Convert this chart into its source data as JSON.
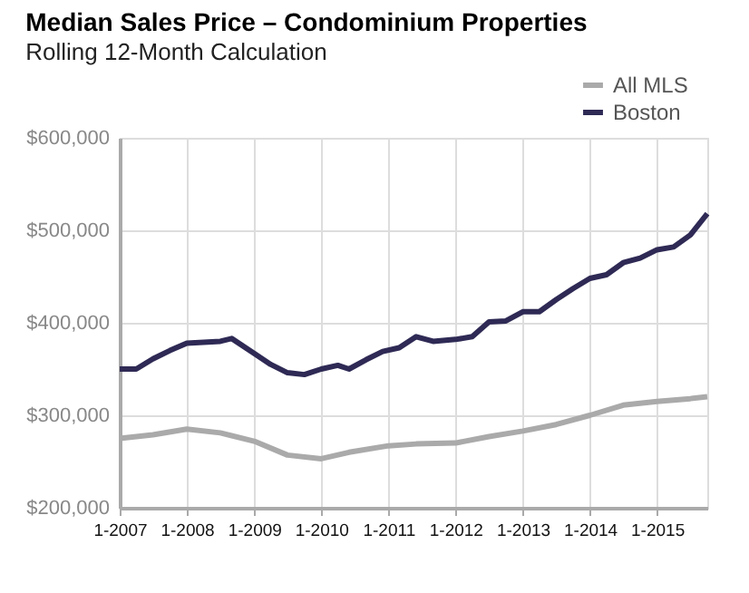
{
  "chart_data": {
    "type": "line",
    "title": "Median Sales Price – Condominium Properties",
    "subtitle": "Rolling 12-Month Calculation",
    "series": [
      {
        "name": "All MLS",
        "color": "#aaaaaa",
        "x": [
          "2007-01",
          "2007-07",
          "2008-01",
          "2008-07",
          "2009-01",
          "2009-07",
          "2010-01",
          "2010-06",
          "2011-01",
          "2011-06",
          "2012-01",
          "2012-07",
          "2013-01",
          "2013-07",
          "2014-01",
          "2014-07",
          "2015-01",
          "2015-07",
          "2015-10"
        ],
        "values": [
          275000,
          279000,
          285000,
          281000,
          272000,
          257000,
          253000,
          260000,
          267000,
          269000,
          270000,
          277000,
          283000,
          290000,
          300000,
          311000,
          315000,
          318000,
          320000
        ]
      },
      {
        "name": "Boston",
        "color": "#2e2a55",
        "x": [
          "2007-01",
          "2007-04",
          "2007-07",
          "2007-10",
          "2008-01",
          "2008-04",
          "2008-07",
          "2008-09",
          "2009-01",
          "2009-04",
          "2009-07",
          "2009-10",
          "2010-01",
          "2010-04",
          "2010-06",
          "2010-09",
          "2010-12",
          "2011-03",
          "2011-06",
          "2011-09",
          "2012-01",
          "2012-04",
          "2012-07",
          "2012-10",
          "2013-01",
          "2013-04",
          "2013-07",
          "2013-10",
          "2014-01",
          "2014-04",
          "2014-07",
          "2014-10",
          "2015-01",
          "2015-04",
          "2015-07",
          "2015-10"
        ],
        "values": [
          350000,
          350000,
          361000,
          370000,
          378000,
          379000,
          380000,
          383000,
          367000,
          355000,
          346000,
          344000,
          350000,
          354000,
          350000,
          360000,
          369000,
          373000,
          385000,
          380000,
          382000,
          385000,
          401000,
          402000,
          412000,
          412000,
          425000,
          437000,
          448000,
          452000,
          465000,
          470000,
          479000,
          482000,
          495000,
          518000
        ]
      }
    ],
    "xlim": [
      "2007-01",
      "2015-10"
    ],
    "xticks": [
      {
        "value": "2007-01",
        "label": "1-2007"
      },
      {
        "value": "2008-01",
        "label": "1-2008"
      },
      {
        "value": "2009-01",
        "label": "1-2009"
      },
      {
        "value": "2010-01",
        "label": "1-2010"
      },
      {
        "value": "2011-01",
        "label": "1-2011"
      },
      {
        "value": "2012-01",
        "label": "1-2012"
      },
      {
        "value": "2013-01",
        "label": "1-2013"
      },
      {
        "value": "2014-01",
        "label": "1-2014"
      },
      {
        "value": "2015-01",
        "label": "1-2015"
      }
    ],
    "ylim": [
      200000,
      600000
    ],
    "yticks": [
      {
        "value": 200000,
        "label": "$200,000"
      },
      {
        "value": 300000,
        "label": "$300,000"
      },
      {
        "value": 400000,
        "label": "$400,000"
      },
      {
        "value": 500000,
        "label": "$500,000"
      },
      {
        "value": 600000,
        "label": "$600,000"
      }
    ],
    "grid": true,
    "legend": "top right",
    "marker": "none",
    "line_style": "solid"
  }
}
